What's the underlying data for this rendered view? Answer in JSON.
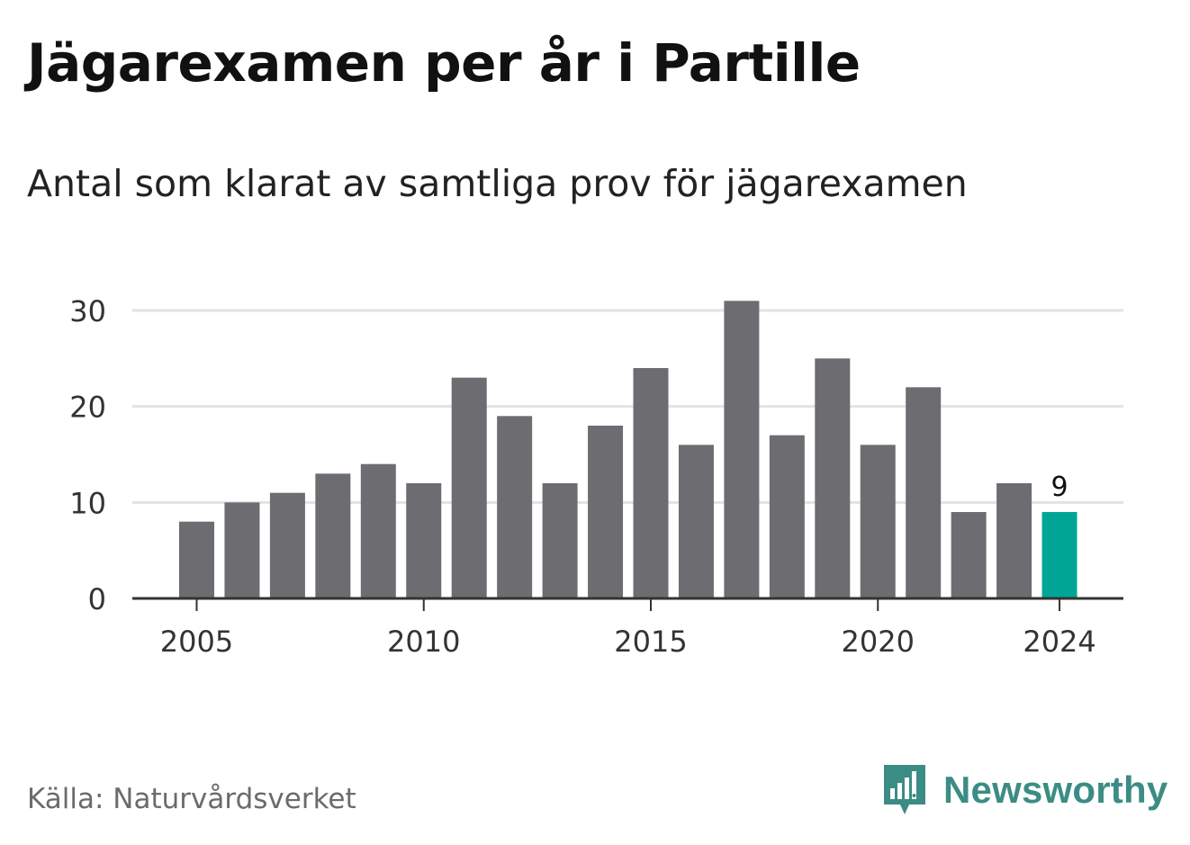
{
  "title": "Jägarexamen per år i Partille",
  "subtitle": "Antal som klarat av samtliga prov för jägarexamen",
  "source": "Källa: Naturvårdsverket",
  "brand": "Newsworthy",
  "brand_icon": "newsworthy-logo-icon",
  "colors": {
    "bar": "#6d6c71",
    "highlight": "#00a596",
    "grid": "#e3e3e3",
    "axis": "#333333",
    "brand": "#3b8c84"
  },
  "chart_data": {
    "type": "bar",
    "categories": [
      "2005",
      "2006",
      "2007",
      "2008",
      "2009",
      "2010",
      "2011",
      "2012",
      "2013",
      "2014",
      "2015",
      "2016",
      "2017",
      "2018",
      "2019",
      "2020",
      "2021",
      "2022",
      "2023",
      "2024"
    ],
    "values": [
      8,
      10,
      11,
      13,
      14,
      12,
      23,
      19,
      12,
      18,
      24,
      16,
      31,
      17,
      25,
      16,
      22,
      9,
      12,
      9
    ],
    "ylim": [
      0,
      30
    ],
    "yticks": [
      0,
      10,
      20,
      30
    ],
    "xticks": [
      "2005",
      "2010",
      "2015",
      "2020",
      "2024"
    ],
    "highlight": "2024",
    "annotations": [
      {
        "category": "2024",
        "label": "9"
      }
    ],
    "grid": true
  }
}
